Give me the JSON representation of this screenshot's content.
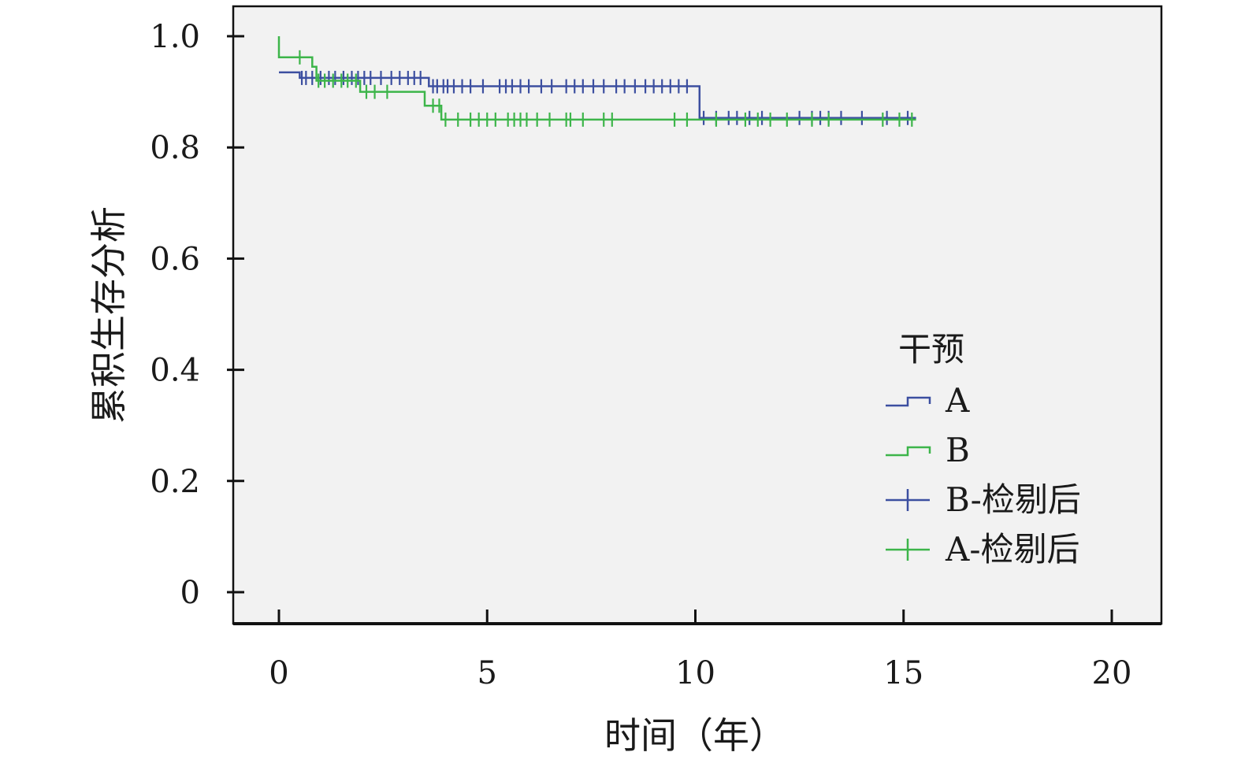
{
  "chart_data": {
    "type": "line",
    "subtype": "kaplan-meier-step",
    "xlabel": "时间（年）",
    "ylabel": "累积生存分析",
    "xlim": [
      0,
      20
    ],
    "ylim": [
      0,
      1.0
    ],
    "x_ticks": [
      0,
      5,
      10,
      15,
      20
    ],
    "x_tick_labels": [
      "0",
      "5",
      "10",
      "15",
      "20"
    ],
    "y_ticks": [
      0,
      0.2,
      0.4,
      0.6,
      0.8,
      1.0
    ],
    "y_tick_labels": [
      "0",
      "0.2",
      "0.4",
      "0.6",
      "0.8",
      "1.0"
    ],
    "grid": false,
    "plot_background": "#f2f2f2",
    "legend_title": "干预",
    "legend_position": "lower-right",
    "legend": [
      {
        "label": "A",
        "symbol": "step",
        "color": "#3c4fa0"
      },
      {
        "label": "B",
        "symbol": "step",
        "color": "#3db54a"
      },
      {
        "label": "B-检剔后",
        "symbol": "plus",
        "color": "#3c4fa0"
      },
      {
        "label": "A-检剔后",
        "symbol": "plus",
        "color": "#3db54a"
      }
    ],
    "series": [
      {
        "color": "#3c4fa0",
        "steps": [
          [
            0,
            0.935
          ],
          [
            0.5,
            0.935
          ],
          [
            0.5,
            0.925
          ],
          [
            3.6,
            0.925
          ],
          [
            3.6,
            0.91
          ],
          [
            10.1,
            0.91
          ],
          [
            10.1,
            0.853
          ],
          [
            15.3,
            0.853
          ]
        ],
        "censored": [
          0.55,
          0.65,
          0.8,
          1.0,
          1.2,
          1.35,
          1.55,
          1.75,
          1.9,
          2.05,
          2.2,
          2.45,
          2.7,
          2.9,
          3.1,
          3.25,
          3.4,
          3.7,
          3.8,
          3.95,
          4.05,
          4.2,
          4.4,
          4.6,
          4.9,
          5.3,
          5.45,
          5.6,
          5.8,
          6.0,
          6.3,
          6.55,
          6.9,
          7.1,
          7.3,
          7.55,
          7.8,
          8.1,
          8.3,
          8.55,
          8.8,
          9.0,
          9.2,
          9.4,
          9.6,
          9.8,
          10.2,
          10.5,
          10.8,
          11.0,
          11.3,
          11.6,
          12.5,
          12.8,
          13.0,
          13.2,
          13.5,
          14.0,
          14.6,
          15.1
        ]
      },
      {
        "color": "#3db54a",
        "steps": [
          [
            0,
            1.0
          ],
          [
            0,
            0.962
          ],
          [
            0.8,
            0.962
          ],
          [
            0.8,
            0.945
          ],
          [
            0.9,
            0.945
          ],
          [
            0.9,
            0.92
          ],
          [
            1.95,
            0.92
          ],
          [
            1.95,
            0.9
          ],
          [
            3.5,
            0.9
          ],
          [
            3.5,
            0.875
          ],
          [
            3.9,
            0.875
          ],
          [
            3.9,
            0.85
          ],
          [
            15.3,
            0.85
          ]
        ],
        "censored": [
          0.5,
          0.95,
          1.1,
          1.3,
          1.5,
          1.65,
          1.85,
          2.1,
          2.3,
          2.6,
          3.7,
          3.85,
          4.0,
          4.3,
          4.6,
          4.8,
          5.0,
          5.2,
          5.5,
          5.65,
          5.8,
          5.95,
          6.2,
          6.5,
          6.9,
          7.0,
          7.3,
          7.8,
          8.0,
          9.5,
          9.8,
          10.5,
          11.2,
          11.5,
          11.8,
          12.2,
          12.8,
          13.2,
          14.5,
          14.9,
          15.2
        ]
      }
    ]
  }
}
